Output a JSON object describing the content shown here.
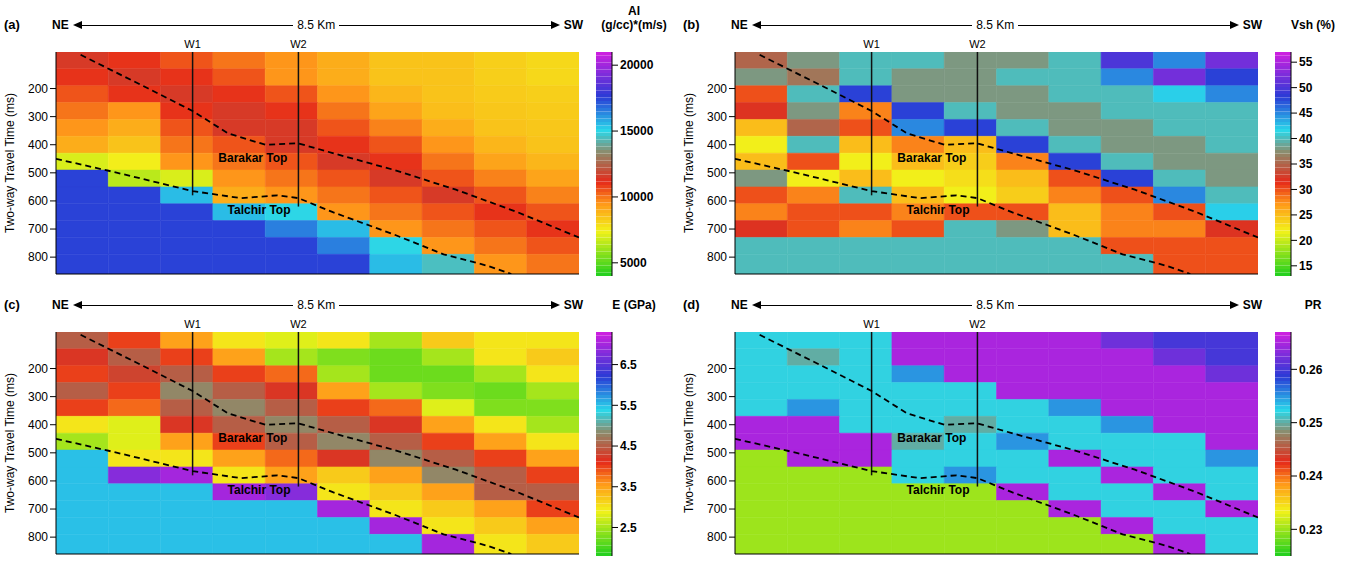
{
  "chart_data": [
    {
      "type": "heatmap",
      "title": "(a)",
      "directions": [
        "NE",
        "SW"
      ],
      "xlabel": "8.5 Km",
      "ylabel": "Two-way Travel Time (ms)",
      "tick_labels": "y",
      "xlim": [
        0,
        8.5
      ],
      "ylim": [
        70,
        860
      ],
      "yticks": [
        200,
        300,
        400,
        500,
        600,
        700,
        800
      ],
      "x_edges": [
        0,
        0.85,
        1.7,
        2.55,
        3.4,
        4.25,
        5.1,
        5.95,
        6.8,
        7.65,
        8.5
      ],
      "y_edges": [
        70,
        130,
        190,
        250,
        310,
        370,
        430,
        490,
        550,
        610,
        670,
        730,
        790,
        860
      ],
      "colorbar": {
        "label": [
          "AI",
          "(g/cc)*(m/s)"
        ],
        "range": [
          4000,
          21000
        ],
        "ticks": [
          5000,
          10000,
          15000,
          20000
        ]
      },
      "cells": [
        [
          11500,
          11000,
          10500,
          10000,
          9500,
          9000,
          8500,
          8500,
          8200,
          8000
        ],
        [
          11000,
          11500,
          11000,
          10500,
          9500,
          9000,
          8500,
          8500,
          8200,
          8000
        ],
        [
          10500,
          11000,
          11500,
          11000,
          10500,
          9500,
          8800,
          8500,
          8300,
          8200
        ],
        [
          10000,
          9500,
          11000,
          11500,
          11000,
          10000,
          9200,
          8600,
          8400,
          8300
        ],
        [
          9500,
          9000,
          10500,
          11500,
          11500,
          10500,
          9800,
          9000,
          8500,
          8400
        ],
        [
          9000,
          8500,
          10000,
          10500,
          11500,
          11000,
          10500,
          9500,
          8800,
          8500
        ],
        [
          7000,
          7500,
          9500,
          10000,
          10500,
          11500,
          11000,
          10000,
          9200,
          8800
        ],
        [
          17500,
          6500,
          7000,
          9500,
          10000,
          10500,
          11500,
          10500,
          9800,
          9200
        ],
        [
          17500,
          17500,
          15500,
          9000,
          9500,
          10000,
          10500,
          11500,
          10500,
          9800
        ],
        [
          17500,
          17500,
          17500,
          15500,
          15000,
          9500,
          10000,
          10500,
          11000,
          10500
        ],
        [
          17500,
          17500,
          17500,
          17500,
          16500,
          15500,
          9500,
          10000,
          10500,
          11000
        ],
        [
          17500,
          17500,
          17500,
          17500,
          17500,
          16500,
          15000,
          9500,
          10000,
          10500
        ],
        [
          17500,
          17500,
          17500,
          17500,
          17500,
          17500,
          15500,
          14500,
          9500,
          10000
        ]
      ],
      "horizons": [
        {
          "name": "Barakar Top",
          "line_style": "dashed",
          "x": [
            0.4,
            1.5,
            2.22,
            2.8,
            3.4,
            3.94,
            4.5,
            5.5,
            6.5,
            7.5,
            8.5
          ],
          "y": [
            80,
            200,
            280,
            360,
            400,
            395,
            430,
            490,
            560,
            640,
            730
          ],
          "label_x": 3.2,
          "label_y": 445
        },
        {
          "name": "Talchir Top",
          "line_style": "dashed",
          "x": [
            0,
            1.0,
            2.22,
            3.0,
            3.6,
            3.94,
            4.5,
            5.5,
            6.3,
            7.0,
            7.4
          ],
          "y": [
            450,
            500,
            565,
            590,
            580,
            590,
            640,
            720,
            790,
            830,
            860
          ],
          "label_x": 3.3,
          "label_y": 630
        }
      ],
      "wells": [
        {
          "name": "W1",
          "x": 2.22,
          "y": [
            70,
            580
          ]
        },
        {
          "name": "W2",
          "x": 3.94,
          "y": [
            70,
            620
          ]
        }
      ]
    },
    {
      "type": "heatmap",
      "title": "(b)",
      "directions": [
        "NE",
        "SW"
      ],
      "xlabel": "8.5 Km",
      "ylabel": "Two-way Travel Time (ms)",
      "tick_labels": "y",
      "xlim": [
        0,
        8.5
      ],
      "ylim": [
        70,
        860
      ],
      "yticks": [
        200,
        300,
        400,
        500,
        600,
        700,
        800
      ],
      "x_edges": [
        0,
        0.85,
        1.7,
        2.55,
        3.4,
        4.25,
        5.1,
        5.95,
        6.8,
        7.65,
        8.5
      ],
      "y_edges": [
        70,
        130,
        190,
        250,
        310,
        370,
        430,
        490,
        550,
        610,
        670,
        730,
        790,
        860
      ],
      "colorbar": {
        "label": [
          "Vsh (%)"
        ],
        "range": [
          13,
          57
        ],
        "ticks": [
          15,
          20,
          25,
          30,
          35,
          40,
          45,
          50,
          55
        ]
      },
      "cells": [
        [
          35,
          38,
          40,
          40,
          38,
          38,
          40,
          50,
          45,
          52
        ],
        [
          38,
          36,
          40,
          38,
          38,
          40,
          40,
          45,
          52,
          48
        ],
        [
          30,
          40,
          48,
          38,
          38,
          38,
          40,
          40,
          42,
          45
        ],
        [
          32,
          38,
          28,
          48,
          40,
          38,
          38,
          40,
          40,
          40
        ],
        [
          25,
          35,
          30,
          45,
          48,
          40,
          38,
          38,
          40,
          40
        ],
        [
          22,
          40,
          25,
          28,
          25,
          48,
          40,
          38,
          38,
          40
        ],
        [
          25,
          30,
          22,
          25,
          24,
          28,
          48,
          40,
          38,
          38
        ],
        [
          38,
          22,
          25,
          22,
          23,
          25,
          30,
          48,
          40,
          38
        ],
        [
          30,
          28,
          40,
          25,
          22,
          24,
          28,
          30,
          45,
          40
        ],
        [
          28,
          30,
          30,
          28,
          30,
          30,
          25,
          28,
          30,
          42
        ],
        [
          32,
          30,
          28,
          30,
          40,
          38,
          25,
          28,
          28,
          32
        ],
        [
          40,
          40,
          40,
          40,
          40,
          40,
          40,
          30,
          30,
          30
        ],
        [
          40,
          40,
          40,
          40,
          40,
          40,
          40,
          40,
          30,
          30
        ]
      ],
      "horizons": [
        {
          "name": "Barakar Top",
          "line_style": "dashed",
          "x": [
            0.4,
            1.5,
            2.22,
            2.8,
            3.4,
            3.94,
            4.5,
            5.5,
            6.5,
            7.5,
            8.5
          ],
          "y": [
            80,
            200,
            280,
            360,
            400,
            395,
            430,
            490,
            560,
            640,
            730
          ],
          "label_x": 3.2,
          "label_y": 445
        },
        {
          "name": "Talchir Top",
          "line_style": "dashed",
          "x": [
            0,
            1.0,
            2.22,
            3.0,
            3.6,
            3.94,
            4.5,
            5.5,
            6.3,
            7.0,
            7.4
          ],
          "y": [
            450,
            500,
            565,
            590,
            580,
            590,
            640,
            720,
            790,
            830,
            860
          ],
          "label_x": 3.3,
          "label_y": 630
        }
      ],
      "wells": [
        {
          "name": "W1",
          "x": 2.22,
          "y": [
            70,
            580
          ]
        },
        {
          "name": "W2",
          "x": 3.94,
          "y": [
            70,
            620
          ]
        }
      ]
    },
    {
      "type": "heatmap",
      "title": "(c)",
      "directions": [
        "NE",
        "SW"
      ],
      "xlabel": "8.5 Km",
      "ylabel": "Two-way Travel Time (ms)",
      "tick_labels": "y",
      "xlim": [
        0,
        8.5
      ],
      "ylim": [
        70,
        860
      ],
      "yticks": [
        200,
        300,
        400,
        500,
        600,
        700,
        800
      ],
      "x_edges": [
        0,
        0.85,
        1.7,
        2.55,
        3.4,
        4.25,
        5.1,
        5.95,
        6.8,
        7.65,
        8.5
      ],
      "y_edges": [
        70,
        130,
        190,
        250,
        310,
        370,
        430,
        490,
        550,
        610,
        670,
        730,
        790,
        860
      ],
      "colorbar": {
        "label": [
          "E (GPa)"
        ],
        "range": [
          1.8,
          7.3
        ],
        "ticks": [
          2.5,
          3.5,
          4.5,
          5.5,
          6.5
        ]
      },
      "cells": [
        [
          4.5,
          4.0,
          3.5,
          3.0,
          2.8,
          3.0,
          2.5,
          3.2,
          3.0,
          3.0
        ],
        [
          4.2,
          4.5,
          4.0,
          3.5,
          2.5,
          2.3,
          2.2,
          2.5,
          3.0,
          3.2
        ],
        [
          4.0,
          4.3,
          4.5,
          4.0,
          3.8,
          2.5,
          2.2,
          2.2,
          2.5,
          3.0
        ],
        [
          4.5,
          4.0,
          4.8,
          4.5,
          4.2,
          3.5,
          2.5,
          2.3,
          2.2,
          2.5
        ],
        [
          4.0,
          3.8,
          4.5,
          4.8,
          4.5,
          4.0,
          3.8,
          2.8,
          2.3,
          2.3
        ],
        [
          3.0,
          2.8,
          4.2,
          4.5,
          4.8,
          4.5,
          4.2,
          3.5,
          3.0,
          2.5
        ],
        [
          2.5,
          2.8,
          3.5,
          4.0,
          4.5,
          4.8,
          4.5,
          4.0,
          3.5,
          3.0
        ],
        [
          5.5,
          3.0,
          3.0,
          3.5,
          3.8,
          4.2,
          4.8,
          4.5,
          4.0,
          3.5
        ],
        [
          5.5,
          6.8,
          7.0,
          3.0,
          3.5,
          3.2,
          3.5,
          4.8,
          4.5,
          4.0
        ],
        [
          5.5,
          5.5,
          5.5,
          7.0,
          6.8,
          3.0,
          3.2,
          3.5,
          4.5,
          4.5
        ],
        [
          5.5,
          5.5,
          5.5,
          5.5,
          5.5,
          7.0,
          3.0,
          3.2,
          3.5,
          4.0
        ],
        [
          5.5,
          5.5,
          5.5,
          5.5,
          5.5,
          5.5,
          7.0,
          3.0,
          3.2,
          3.5
        ],
        [
          5.5,
          5.5,
          5.5,
          5.5,
          5.5,
          5.5,
          5.5,
          7.0,
          3.0,
          3.2
        ]
      ],
      "horizons": [
        {
          "name": "Barakar Top",
          "line_style": "dashed",
          "x": [
            0.4,
            1.5,
            2.22,
            2.8,
            3.4,
            3.94,
            4.5,
            5.5,
            6.5,
            7.5,
            8.5
          ],
          "y": [
            80,
            200,
            280,
            360,
            400,
            395,
            430,
            490,
            560,
            640,
            730
          ],
          "label_x": 3.2,
          "label_y": 445
        },
        {
          "name": "Talchir Top",
          "line_style": "dashed",
          "x": [
            0,
            1.0,
            2.22,
            3.0,
            3.6,
            3.94,
            4.5,
            5.5,
            6.3,
            7.0,
            7.4
          ],
          "y": [
            450,
            500,
            565,
            590,
            580,
            590,
            640,
            720,
            790,
            830,
            860
          ],
          "label_x": 3.3,
          "label_y": 630
        }
      ],
      "wells": [
        {
          "name": "W1",
          "x": 2.22,
          "y": [
            70,
            580
          ]
        },
        {
          "name": "W2",
          "x": 3.94,
          "y": [
            70,
            620
          ]
        }
      ]
    },
    {
      "type": "heatmap",
      "title": "(d)",
      "directions": [
        "NE",
        "SW"
      ],
      "xlabel": "8.5 Km",
      "ylabel": "Two-way Travel Time (ms)",
      "tick_labels": "y",
      "xlim": [
        0,
        8.5
      ],
      "ylim": [
        70,
        860
      ],
      "yticks": [
        200,
        300,
        400,
        500,
        600,
        700,
        800
      ],
      "x_edges": [
        0,
        0.85,
        1.7,
        2.55,
        3.4,
        4.25,
        5.1,
        5.95,
        6.8,
        7.65,
        8.5
      ],
      "y_edges": [
        70,
        130,
        190,
        250,
        310,
        370,
        430,
        490,
        550,
        610,
        670,
        730,
        790,
        860
      ],
      "colorbar": {
        "label": [
          "PR"
        ],
        "range": [
          0.225,
          0.267
        ],
        "ticks": [
          0.23,
          0.24,
          0.25,
          0.26
        ]
      },
      "cells": [
        [
          0.252,
          0.252,
          0.252,
          0.265,
          0.265,
          0.265,
          0.265,
          0.262,
          0.26,
          0.26
        ],
        [
          0.252,
          0.25,
          0.252,
          0.265,
          0.265,
          0.265,
          0.265,
          0.265,
          0.262,
          0.26
        ],
        [
          0.252,
          0.252,
          0.252,
          0.255,
          0.265,
          0.265,
          0.265,
          0.265,
          0.265,
          0.262
        ],
        [
          0.252,
          0.252,
          0.252,
          0.252,
          0.252,
          0.265,
          0.265,
          0.265,
          0.265,
          0.265
        ],
        [
          0.252,
          0.255,
          0.252,
          0.252,
          0.252,
          0.252,
          0.255,
          0.265,
          0.265,
          0.265
        ],
        [
          0.265,
          0.265,
          0.252,
          0.252,
          0.25,
          0.252,
          0.252,
          0.255,
          0.265,
          0.265
        ],
        [
          0.265,
          0.265,
          0.265,
          0.25,
          0.252,
          0.255,
          0.252,
          0.252,
          0.252,
          0.265
        ],
        [
          0.23,
          0.265,
          0.265,
          0.252,
          0.252,
          0.252,
          0.265,
          0.252,
          0.252,
          0.255
        ],
        [
          0.23,
          0.23,
          0.23,
          0.252,
          0.255,
          0.252,
          0.252,
          0.265,
          0.252,
          0.252
        ],
        [
          0.23,
          0.23,
          0.23,
          0.23,
          0.23,
          0.265,
          0.252,
          0.252,
          0.265,
          0.252
        ],
        [
          0.23,
          0.23,
          0.23,
          0.23,
          0.23,
          0.23,
          0.265,
          0.252,
          0.252,
          0.265
        ],
        [
          0.23,
          0.23,
          0.23,
          0.23,
          0.23,
          0.23,
          0.23,
          0.265,
          0.252,
          0.252
        ],
        [
          0.23,
          0.23,
          0.23,
          0.23,
          0.23,
          0.23,
          0.23,
          0.23,
          0.265,
          0.252
        ]
      ],
      "horizons": [
        {
          "name": "Barakar Top",
          "line_style": "dashed",
          "x": [
            0.4,
            1.5,
            2.22,
            2.8,
            3.4,
            3.94,
            4.5,
            5.5,
            6.5,
            7.5,
            8.5
          ],
          "y": [
            80,
            200,
            280,
            360,
            400,
            395,
            430,
            490,
            560,
            640,
            730
          ],
          "label_x": 3.2,
          "label_y": 445
        },
        {
          "name": "Talchir Top",
          "line_style": "dashed",
          "x": [
            0,
            1.0,
            2.22,
            3.0,
            3.6,
            3.94,
            4.5,
            5.5,
            6.3,
            7.0,
            7.4
          ],
          "y": [
            450,
            500,
            565,
            590,
            580,
            590,
            640,
            720,
            790,
            830,
            860
          ],
          "label_x": 3.3,
          "label_y": 630
        }
      ],
      "wells": [
        {
          "name": "W1",
          "x": 2.22,
          "y": [
            70,
            580
          ]
        },
        {
          "name": "W2",
          "x": 3.94,
          "y": [
            70,
            620
          ]
        }
      ]
    }
  ]
}
